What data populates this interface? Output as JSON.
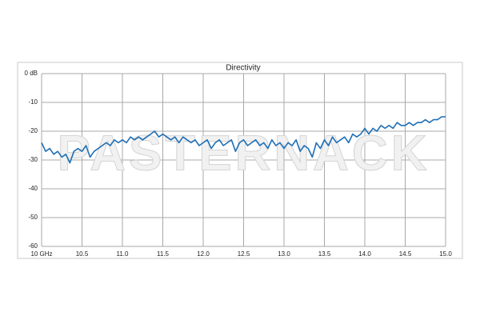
{
  "chart_data": {
    "type": "line",
    "title": "Directivity",
    "watermark": "PASTERNACK",
    "x": [
      10.0,
      10.05,
      10.1,
      10.15,
      10.2,
      10.25,
      10.3,
      10.35,
      10.4,
      10.45,
      10.5,
      10.55,
      10.6,
      10.65,
      10.7,
      10.75,
      10.8,
      10.85,
      10.9,
      10.95,
      11.0,
      11.05,
      11.1,
      11.15,
      11.2,
      11.25,
      11.3,
      11.35,
      11.4,
      11.45,
      11.5,
      11.55,
      11.6,
      11.65,
      11.7,
      11.75,
      11.8,
      11.85,
      11.9,
      11.95,
      12.0,
      12.05,
      12.1,
      12.15,
      12.2,
      12.25,
      12.3,
      12.35,
      12.4,
      12.45,
      12.5,
      12.55,
      12.6,
      12.65,
      12.7,
      12.75,
      12.8,
      12.85,
      12.9,
      12.95,
      13.0,
      13.05,
      13.1,
      13.15,
      13.2,
      13.25,
      13.3,
      13.35,
      13.4,
      13.45,
      13.5,
      13.55,
      13.6,
      13.65,
      13.7,
      13.75,
      13.8,
      13.85,
      13.9,
      13.95,
      14.0,
      14.05,
      14.1,
      14.15,
      14.2,
      14.25,
      14.3,
      14.35,
      14.4,
      14.45,
      14.5,
      14.55,
      14.6,
      14.65,
      14.7,
      14.75,
      14.8,
      14.85,
      14.9,
      14.95,
      15.0
    ],
    "series": [
      {
        "color": "#1f6fb5",
        "values": [
          -24,
          -27,
          -26,
          -28,
          -27,
          -29,
          -28,
          -31,
          -27,
          -26,
          -27,
          -25,
          -29,
          -27,
          -26,
          -25,
          -24,
          -25,
          -23,
          -24,
          -23,
          -24,
          -22,
          -23,
          -22,
          -23,
          -22,
          -21,
          -20,
          -22,
          -21,
          -22,
          -23,
          -22,
          -24,
          -22,
          -23,
          -24,
          -23,
          -25,
          -24,
          -23,
          -26,
          -24,
          -23,
          -25,
          -24,
          -23,
          -27,
          -24,
          -23,
          -25,
          -24,
          -23,
          -25,
          -24,
          -26,
          -23,
          -25,
          -24,
          -26,
          -24,
          -25,
          -23,
          -27,
          -25,
          -26,
          -29,
          -24,
          -26,
          -23,
          -25,
          -22,
          -24,
          -23,
          -22,
          -24,
          -21,
          -22,
          -21,
          -19,
          -21,
          -19,
          -20,
          -18,
          -19,
          -18,
          -19,
          -17,
          -18,
          -18,
          -17,
          -18,
          -17,
          -17,
          -16,
          -17,
          -16,
          -16,
          -15,
          -15
        ]
      }
    ],
    "xlim": [
      10,
      15
    ],
    "xticks": [
      {
        "value": 10,
        "label": "10 GHz"
      },
      10.5,
      {
        "value": 11,
        "label": "11.0"
      },
      11.5,
      {
        "value": 12,
        "label": "12.0"
      },
      12.5,
      {
        "value": 13,
        "label": "13.0"
      },
      13.5,
      {
        "value": 14,
        "label": "14.0"
      },
      14.5,
      {
        "value": 15,
        "label": "15.0"
      }
    ],
    "ylim": [
      -60,
      0
    ],
    "yticks": [
      {
        "value": 0,
        "label": "0 dB"
      },
      -10,
      -20,
      -30,
      -40,
      -50,
      -60
    ],
    "grid": true
  }
}
